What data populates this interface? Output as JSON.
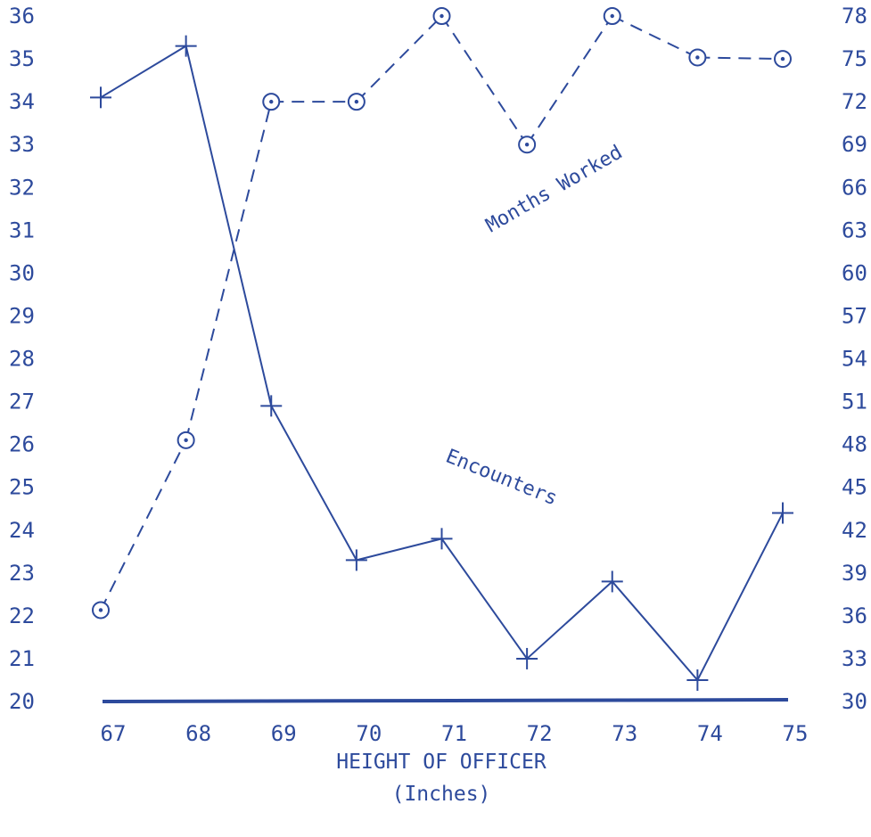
{
  "chart_data": {
    "type": "line",
    "x": [
      67,
      68,
      69,
      70,
      71,
      72,
      73,
      74,
      75
    ],
    "xlabel": "HEIGHT OF OFFICER",
    "xlabel_sub": "(Inches)",
    "x_ticks": [
      "67",
      "68",
      "69",
      "70",
      "71",
      "72",
      "73",
      "74",
      "75"
    ],
    "y_left": {
      "range": [
        20,
        36
      ],
      "ticks": [
        "20",
        "21",
        "22",
        "23",
        "24",
        "25",
        "26",
        "27",
        "28",
        "29",
        "30",
        "31",
        "32",
        "33",
        "34",
        "35",
        "36"
      ]
    },
    "y_right": {
      "range": [
        30,
        78
      ],
      "ticks": [
        "30",
        "33",
        "36",
        "39",
        "42",
        "45",
        "48",
        "51",
        "54",
        "57",
        "60",
        "63",
        "66",
        "69",
        "72",
        "75",
        "78"
      ]
    },
    "series": [
      {
        "name": "Encounters",
        "axis": "left",
        "style": "solid",
        "marker": "plus",
        "values": [
          34.1,
          35.3,
          26.9,
          23.3,
          23.8,
          21.0,
          22.8,
          20.5,
          24.4
        ]
      },
      {
        "name": "Months Worked",
        "axis": "right",
        "style": "dashed",
        "marker": "circled-dot",
        "values": [
          36.4,
          48.3,
          72.0,
          72.0,
          78.0,
          69.0,
          78.0,
          75.1,
          75.0
        ]
      }
    ],
    "grid": false,
    "color": "#2d4a9c"
  }
}
